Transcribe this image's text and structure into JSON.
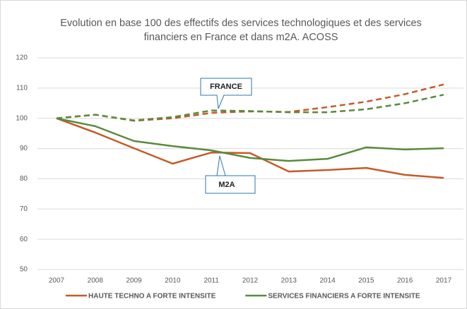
{
  "chart_data": {
    "type": "line",
    "title": "Evolution en base 100 des effectifs des services technologiques et des services financiers en France et dans m2A. ACOSS",
    "categories": [
      2007,
      2008,
      2009,
      2010,
      2011,
      2012,
      2013,
      2014,
      2015,
      2016,
      2017
    ],
    "series": [
      {
        "name": "HAUTE TECHNO A FORTE INTENSITE",
        "color": "#c55a28",
        "dashed": false,
        "values": [
          100,
          95.3,
          90.1,
          85,
          88.7,
          88.5,
          82.4,
          82.9,
          83.6,
          81.3,
          80.3
        ]
      },
      {
        "name": "SERVICES FINANCIERS A FORTE INTENSITE",
        "color": "#5a8a3c",
        "dashed": false,
        "values": [
          100,
          97.4,
          92.5,
          90.8,
          89.4,
          86.9,
          85.9,
          86.6,
          90.4,
          89.7,
          90.1
        ]
      },
      {
        "color": "#c55a28",
        "dashed": true,
        "values": [
          100,
          101.2,
          99.2,
          100,
          101.8,
          102.3,
          102.1,
          103.7,
          105.5,
          108,
          111.2
        ]
      },
      {
        "color": "#5a8a3c",
        "dashed": true,
        "values": [
          100,
          101.2,
          99.3,
          100.4,
          102.6,
          102.4,
          102,
          102,
          103,
          105,
          107.8
        ]
      }
    ],
    "annotations": [
      "FRANCE",
      "M2A"
    ],
    "ylim": [
      50,
      120
    ],
    "yticks": [
      50,
      60,
      70,
      80,
      90,
      100,
      110,
      120
    ],
    "grid": true
  }
}
